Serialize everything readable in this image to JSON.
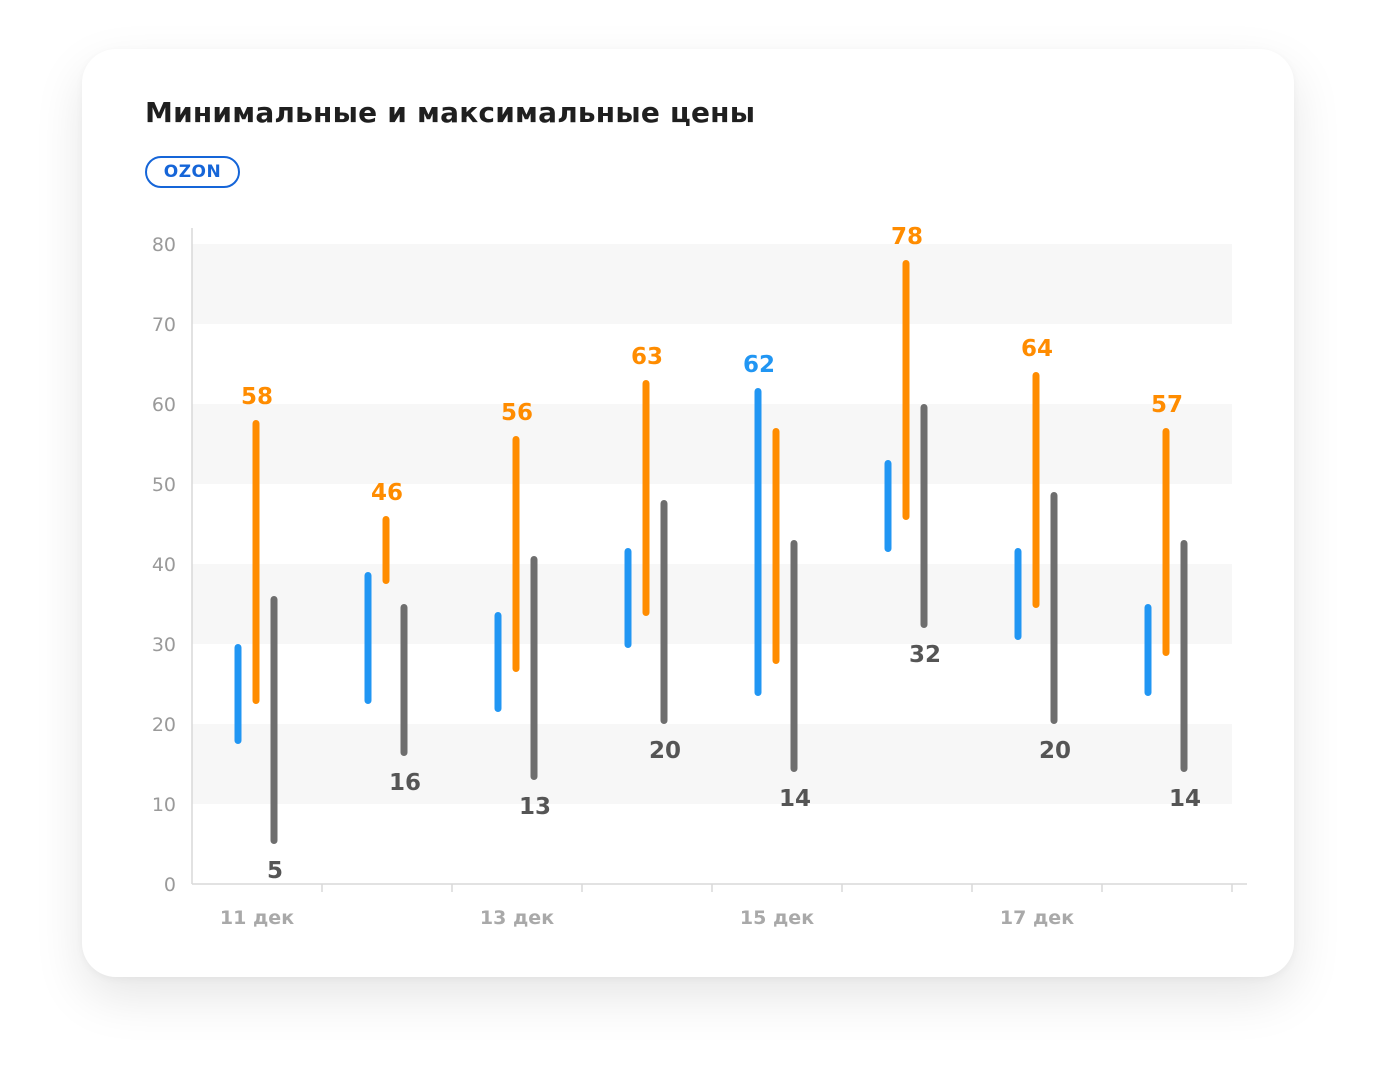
{
  "title": "Минимальные и максимальные цены",
  "badge": "OZON",
  "colors": {
    "blue": "#2196f3",
    "orange": "#ff8c00",
    "gray": "#6e6e6e",
    "band": "#f7f7f7",
    "axis": "#d9d9d9"
  },
  "chart_data": {
    "type": "bar",
    "subtype": "range",
    "title": "Минимальные и максимальные цены",
    "xlabel": "",
    "ylabel": "",
    "ylim": [
      0,
      80
    ],
    "yticks": [
      0,
      10,
      20,
      30,
      40,
      50,
      60,
      70,
      80
    ],
    "grid": "alternating horizontal bands",
    "legend": "none",
    "groups": 8,
    "xtick_labels": [
      {
        "group": 0,
        "label": "11 дек"
      },
      {
        "group": 2,
        "label": "13 дек"
      },
      {
        "group": 4,
        "label": "15 дек"
      },
      {
        "group": 6,
        "label": "17 дек"
      }
    ],
    "series": [
      {
        "color": "blue",
        "ranges": [
          [
            17.5,
            30
          ],
          [
            22.5,
            39
          ],
          [
            21.5,
            34
          ],
          [
            29.5,
            42
          ],
          [
            23.5,
            62
          ],
          [
            41.5,
            53
          ],
          [
            30.5,
            42
          ],
          [
            23.5,
            35
          ]
        ]
      },
      {
        "color": "orange",
        "ranges": [
          [
            22.5,
            58
          ],
          [
            37.5,
            46
          ],
          [
            26.5,
            56
          ],
          [
            33.5,
            63
          ],
          [
            27.5,
            57
          ],
          [
            45.5,
            78
          ],
          [
            34.5,
            64
          ],
          [
            28.5,
            57
          ]
        ]
      },
      {
        "color": "gray",
        "ranges": [
          [
            5,
            36
          ],
          [
            16,
            35
          ],
          [
            13,
            41
          ],
          [
            20,
            48
          ],
          [
            14,
            43
          ],
          [
            32,
            60
          ],
          [
            20,
            49
          ],
          [
            14,
            43
          ]
        ]
      }
    ],
    "labels": [
      {
        "group": 0,
        "series": 1,
        "position": "top",
        "text": "58"
      },
      {
        "group": 1,
        "series": 1,
        "position": "top",
        "text": "46"
      },
      {
        "group": 2,
        "series": 1,
        "position": "top",
        "text": "56"
      },
      {
        "group": 3,
        "series": 1,
        "position": "top",
        "text": "63"
      },
      {
        "group": 4,
        "series": 0,
        "position": "top",
        "text": "62"
      },
      {
        "group": 5,
        "series": 1,
        "position": "top",
        "text": "78"
      },
      {
        "group": 6,
        "series": 1,
        "position": "top",
        "text": "64"
      },
      {
        "group": 7,
        "series": 1,
        "position": "top",
        "text": "57"
      },
      {
        "group": 0,
        "series": 2,
        "position": "bottom",
        "text": "5"
      },
      {
        "group": 1,
        "series": 2,
        "position": "bottom",
        "text": "16"
      },
      {
        "group": 2,
        "series": 2,
        "position": "bottom",
        "text": "13"
      },
      {
        "group": 3,
        "series": 2,
        "position": "bottom",
        "text": "20"
      },
      {
        "group": 4,
        "series": 2,
        "position": "bottom",
        "text": "14"
      },
      {
        "group": 5,
        "series": 2,
        "position": "bottom",
        "text": "32"
      },
      {
        "group": 6,
        "series": 2,
        "position": "bottom",
        "text": "20"
      },
      {
        "group": 7,
        "series": 2,
        "position": "bottom",
        "text": "14"
      }
    ]
  }
}
